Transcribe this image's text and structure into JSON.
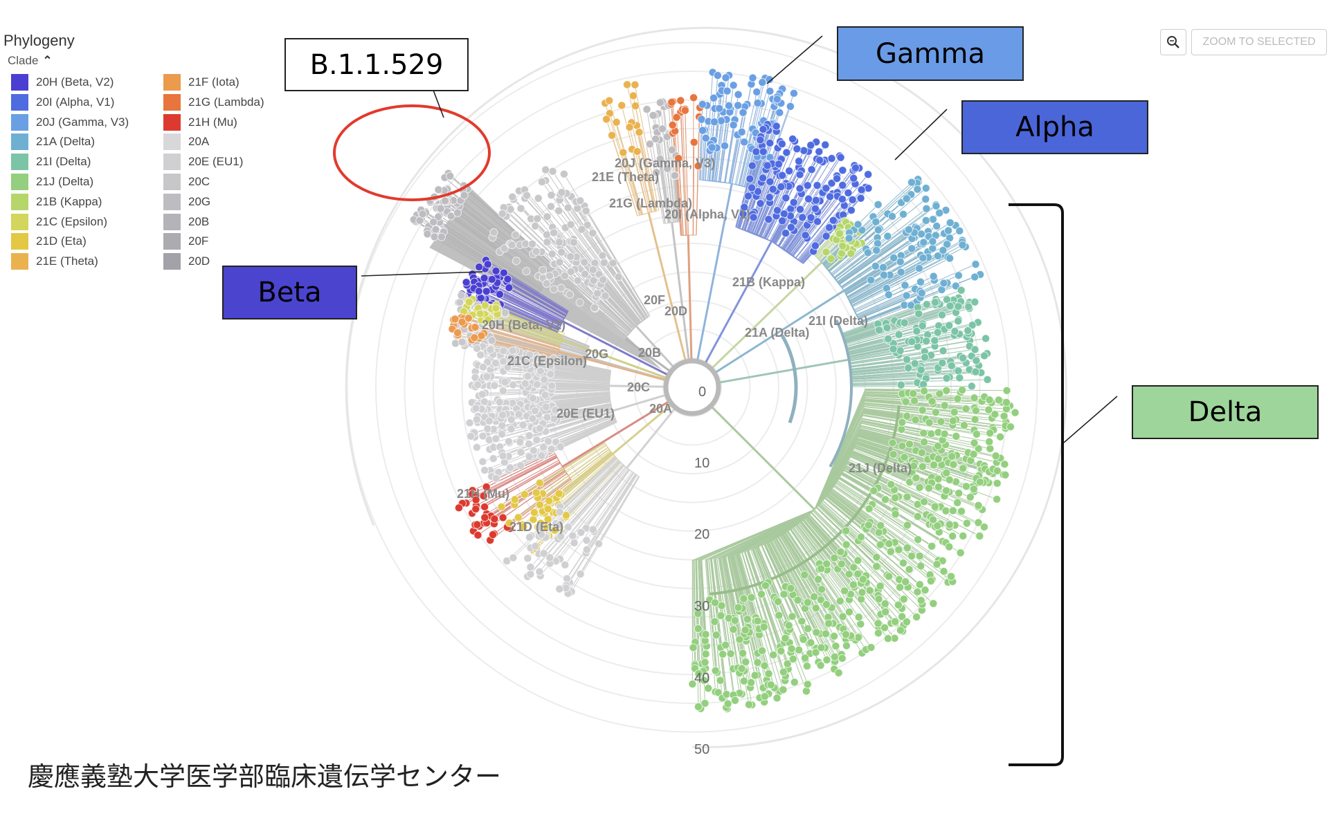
{
  "legend": {
    "title": "Phylogeny",
    "subtitle": "Clade",
    "items_left": [
      {
        "label": "20H (Beta, V2)",
        "color": "#4a3fd1"
      },
      {
        "label": "20I (Alpha, V1)",
        "color": "#4f6be0"
      },
      {
        "label": "20J (Gamma, V3)",
        "color": "#6a9fe3"
      },
      {
        "label": "21A (Delta)",
        "color": "#6fb0d2"
      },
      {
        "label": "21I (Delta)",
        "color": "#7cc4a6"
      },
      {
        "label": "21J (Delta)",
        "color": "#93cf7e"
      },
      {
        "label": "21B (Kappa)",
        "color": "#b5d66a"
      },
      {
        "label": "21C (Epsilon)",
        "color": "#d3d65c"
      },
      {
        "label": "21D (Eta)",
        "color": "#e3c846"
      },
      {
        "label": "21E (Theta)",
        "color": "#eab24f"
      }
    ],
    "items_right": [
      {
        "label": "21F (Iota)",
        "color": "#ec9a4e"
      },
      {
        "label": "21G (Lambda)",
        "color": "#e7753d"
      },
      {
        "label": "21H (Mu)",
        "color": "#dd3a2f"
      },
      {
        "label": "20A",
        "color": "#d8d8da"
      },
      {
        "label": "20E (EU1)",
        "color": "#d0d0d3"
      },
      {
        "label": "20C",
        "color": "#c7c7ca"
      },
      {
        "label": "20G",
        "color": "#bdbdc1"
      },
      {
        "label": "20B",
        "color": "#b4b4b8"
      },
      {
        "label": "20F",
        "color": "#ababb0"
      },
      {
        "label": "20D",
        "color": "#a2a2a8"
      }
    ]
  },
  "toolbar": {
    "zoom_label": "ZOOM TO SELECTED",
    "zoom_icon": "magnifier-icon"
  },
  "callouts": {
    "b11529": "B.1.1.529",
    "gamma": "Gamma",
    "alpha": "Alpha",
    "beta": "Beta",
    "delta": "Delta"
  },
  "colors": {
    "beta": "#4a44cf",
    "gamma": "#6a9be6",
    "alpha": "#4a66d8",
    "delta": "#9ed59a",
    "circle": "#e23a2c"
  },
  "tree": {
    "ring_labels": [
      "0",
      "10",
      "20",
      "30",
      "40",
      "50"
    ],
    "clade_labels": [
      "20J (Gamma, V3)",
      "21E (Theta)",
      "21G (Lambda)",
      "20I (Alpha, V1)",
      "21B (Kappa)",
      "20F",
      "20D",
      "20H (Beta, V2)",
      "21I (Delta)",
      "21A (Delta)",
      "20G",
      "20B",
      "21C (Epsilon)",
      "20C",
      "20E (EU1)",
      "20A",
      "21J (Delta)",
      "21H (Mu)",
      "21D (Eta)"
    ]
  },
  "footer": "慶應義塾大学医学部臨床遺伝学センター"
}
